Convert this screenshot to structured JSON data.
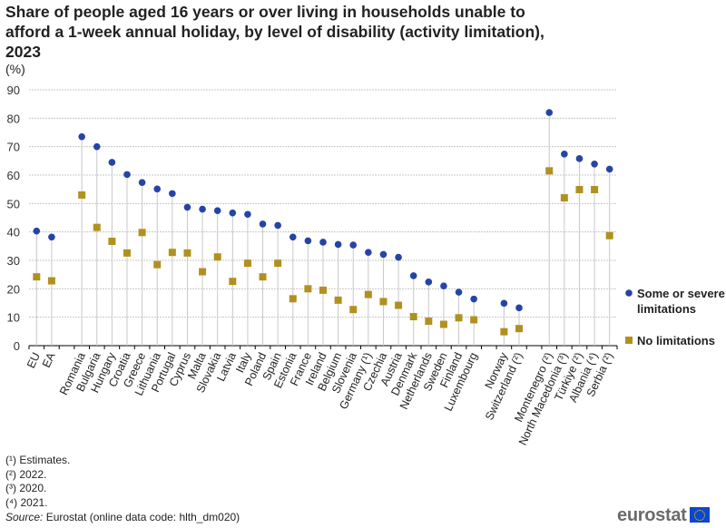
{
  "chart_data": {
    "type": "scatter",
    "title": "Share of people aged 16 years or over living in households unable to afford a 1-week annual holiday, by level of disability (activity limitation), 2023",
    "ylabel": "(%)",
    "ylim": [
      0,
      90
    ],
    "yticks": [
      0,
      10,
      20,
      30,
      40,
      50,
      60,
      70,
      80,
      90
    ],
    "grid": true,
    "legend_placement": "right",
    "categories": [
      "EU",
      "EA",
      "",
      "Romania",
      "Bulgaria",
      "Hungary",
      "Croatia",
      "Greece",
      "Lithuania",
      "Portugal",
      "Cyprus",
      "Malta",
      "Slovakia",
      "Latvia",
      "Italy",
      "Poland",
      "Spain",
      "Estonia",
      "France",
      "Ireland",
      "Belgium",
      "Slovenia",
      "Germany (¹)",
      "Czechia",
      "Austria",
      "Denmark",
      "Netherlands",
      "Sweden",
      "Finland",
      "Luxembourg",
      "",
      "Norway",
      "Switzerland (²)",
      "",
      "Montenegro (²)",
      "North Macedonia (³)",
      "Türkiye (²)",
      "Albania (⁴)",
      "Serbia (²)"
    ],
    "series": [
      {
        "name": "Some or severe limitations",
        "color": "#2644a7",
        "marker": "circle",
        "values": [
          40.3,
          38.2,
          null,
          73.5,
          70.0,
          64.5,
          60.2,
          57.4,
          55.1,
          53.5,
          48.7,
          48.0,
          47.5,
          46.7,
          46.2,
          42.8,
          42.3,
          38.2,
          36.9,
          36.4,
          35.6,
          35.4,
          32.8,
          32.1,
          31.1,
          24.6,
          22.4,
          21.0,
          18.8,
          16.4,
          null,
          14.9,
          13.3,
          null,
          82.0,
          67.4,
          65.8,
          63.9,
          62.1
        ]
      },
      {
        "name": "No limitations",
        "color": "#b09120",
        "marker": "square",
        "values": [
          24.2,
          22.8,
          null,
          53.0,
          41.6,
          36.7,
          32.6,
          39.8,
          28.5,
          32.8,
          32.6,
          26.0,
          31.2,
          22.6,
          29.0,
          24.2,
          29.0,
          16.5,
          20.0,
          19.5,
          16.0,
          12.7,
          18.0,
          15.5,
          14.2,
          10.2,
          8.6,
          7.5,
          9.8,
          9.1,
          null,
          4.9,
          6.0,
          null,
          61.5,
          52.0,
          54.9,
          54.9,
          38.7
        ]
      }
    ]
  },
  "notes": [
    "(¹) Estimates.",
    "(²) 2022.",
    "(³) 2020.",
    "(⁴) 2021."
  ],
  "source_label": "Source:",
  "source_text": " Eurostat (online data code: hlth_dm020)",
  "logo": "eurostat"
}
